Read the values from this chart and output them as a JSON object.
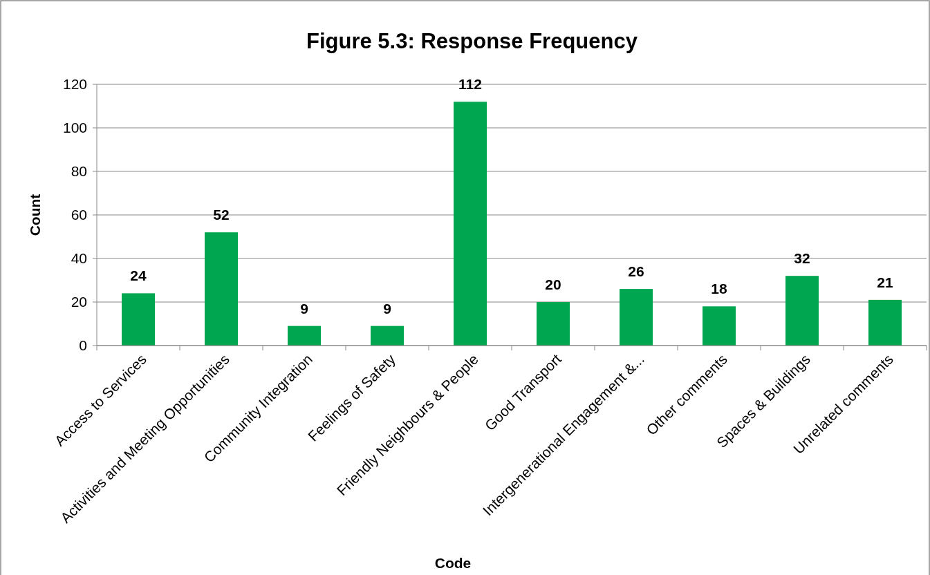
{
  "chart_data": {
    "type": "bar",
    "title": "Figure 5.3: Response Frequency",
    "xlabel": "Code",
    "ylabel": "Count",
    "categories": [
      "Access to Services",
      "Activities and Meeting Opportunities",
      "Community Integration",
      "Feelings of Safety",
      "Friendly Neighbours & People",
      "Good Transport",
      "Intergenerational Engagement &...",
      "Other comments",
      "Spaces & Buildings",
      "Unrelated comments"
    ],
    "values": [
      24,
      52,
      9,
      9,
      112,
      20,
      26,
      18,
      32,
      21
    ],
    "color": "#00a650",
    "ylim": [
      0,
      120
    ],
    "yticks": [
      0,
      20,
      40,
      60,
      80,
      100,
      120
    ],
    "grid": "y",
    "data_labels": true
  }
}
